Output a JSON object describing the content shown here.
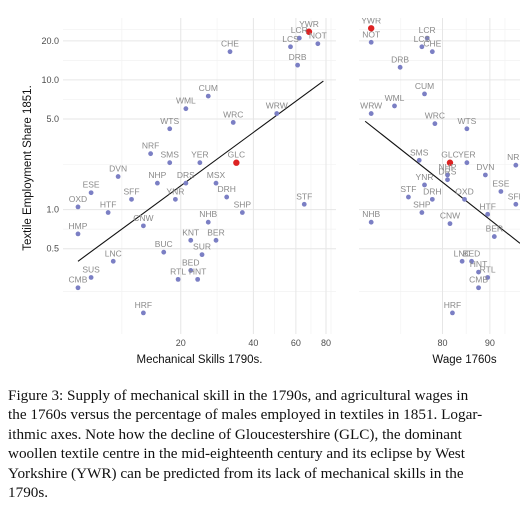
{
  "chart_data": [
    {
      "type": "scatter",
      "ylabel": "Textile Employment Share 1851.",
      "xlabel": "Mechanical Skills 1790s.",
      "x_scale": "log",
      "y_scale": "log",
      "xlim": [
        6.5,
        88
      ],
      "ylim": [
        0.11,
        30
      ],
      "x_ticks": [
        20,
        40,
        60,
        80
      ],
      "y_ticks": [
        0.5,
        1.0,
        5.0,
        10.0,
        20.0
      ],
      "y_tick_labels": [
        "0.5",
        "1.0",
        "5.0",
        "10.0",
        "20.0"
      ],
      "trend_line": [
        [
          7.5,
          0.4
        ],
        [
          78,
          9.8
        ]
      ],
      "highlight_color": "#dd2222",
      "point_color": "#7b7fc4",
      "points": [
        {
          "label": "YWR",
          "x": 68,
          "y": 23.5,
          "highlight": true
        },
        {
          "label": "LCR",
          "x": 62,
          "y": 21
        },
        {
          "label": "LCS",
          "x": 57,
          "y": 18
        },
        {
          "label": "NOT",
          "x": 74,
          "y": 19
        },
        {
          "label": "DRB",
          "x": 61,
          "y": 13
        },
        {
          "label": "CHE",
          "x": 32,
          "y": 16.5
        },
        {
          "label": "CUM",
          "x": 26,
          "y": 7.5
        },
        {
          "label": "WML",
          "x": 21,
          "y": 6
        },
        {
          "label": "WRW",
          "x": 50,
          "y": 5.5
        },
        {
          "label": "WRC",
          "x": 33,
          "y": 4.7
        },
        {
          "label": "WTS",
          "x": 18,
          "y": 4.2
        },
        {
          "label": "NRF",
          "x": 15,
          "y": 2.7
        },
        {
          "label": "SMS",
          "x": 18,
          "y": 2.3
        },
        {
          "label": "YER",
          "x": 24,
          "y": 2.3
        },
        {
          "label": "GLC",
          "x": 34,
          "y": 2.3,
          "highlight": true
        },
        {
          "label": "DVN",
          "x": 11,
          "y": 1.8
        },
        {
          "label": "NHP",
          "x": 16,
          "y": 1.6
        },
        {
          "label": "DRS",
          "x": 21,
          "y": 1.6
        },
        {
          "label": "MSX",
          "x": 28,
          "y": 1.6
        },
        {
          "label": "ESE",
          "x": 8.5,
          "y": 1.35
        },
        {
          "label": "YNR",
          "x": 19,
          "y": 1.2
        },
        {
          "label": "SFF",
          "x": 12.5,
          "y": 1.2
        },
        {
          "label": "DRH",
          "x": 31,
          "y": 1.25
        },
        {
          "label": "STF",
          "x": 65,
          "y": 1.1
        },
        {
          "label": "OXD",
          "x": 7.5,
          "y": 1.05
        },
        {
          "label": "HTF",
          "x": 10,
          "y": 0.95
        },
        {
          "label": "SHP",
          "x": 36,
          "y": 0.95
        },
        {
          "label": "CNW",
          "x": 14,
          "y": 0.75
        },
        {
          "label": "NHB",
          "x": 26,
          "y": 0.8
        },
        {
          "label": "HMP",
          "x": 7.5,
          "y": 0.65
        },
        {
          "label": "KNT",
          "x": 22,
          "y": 0.58
        },
        {
          "label": "BER",
          "x": 28,
          "y": 0.58
        },
        {
          "label": "BUC",
          "x": 17,
          "y": 0.47
        },
        {
          "label": "SUR",
          "x": 24.5,
          "y": 0.45
        },
        {
          "label": "LNC",
          "x": 10.5,
          "y": 0.4
        },
        {
          "label": "BED",
          "x": 22,
          "y": 0.34
        },
        {
          "label": "SUS",
          "x": 8.5,
          "y": 0.3
        },
        {
          "label": "RTL",
          "x": 19.5,
          "y": 0.29
        },
        {
          "label": "HNT",
          "x": 23.5,
          "y": 0.29
        },
        {
          "label": "CMB",
          "x": 7.5,
          "y": 0.25
        },
        {
          "label": "HRF",
          "x": 14,
          "y": 0.16
        }
      ]
    },
    {
      "type": "scatter",
      "ylabel": "",
      "xlabel": "Wage 1760s",
      "x_scale": "log",
      "y_scale": "log",
      "xlim": [
        65,
        97
      ],
      "ylim": [
        0.11,
        30
      ],
      "x_ticks": [
        80,
        90
      ],
      "trend_line": [
        [
          66,
          4.8
        ],
        [
          97,
          0.55
        ]
      ],
      "highlight_color": "#dd2222",
      "point_color": "#7b7fc4",
      "points": [
        {
          "label": "YWR",
          "x": 67,
          "y": 25,
          "highlight": true
        },
        {
          "label": "NOT",
          "x": 67,
          "y": 19.5
        },
        {
          "label": "LCR",
          "x": 77,
          "y": 21
        },
        {
          "label": "LCS",
          "x": 76,
          "y": 18
        },
        {
          "label": "CHE",
          "x": 78,
          "y": 16.5
        },
        {
          "label": "DRB",
          "x": 72,
          "y": 12.5
        },
        {
          "label": "CUM",
          "x": 76.5,
          "y": 7.8
        },
        {
          "label": "WML",
          "x": 71,
          "y": 6.3
        },
        {
          "label": "WRW",
          "x": 67,
          "y": 5.5
        },
        {
          "label": "WRC",
          "x": 78.5,
          "y": 4.6
        },
        {
          "label": "WTS",
          "x": 85,
          "y": 4.2
        },
        {
          "label": "GLC",
          "x": 81.5,
          "y": 2.3,
          "highlight": true
        },
        {
          "label": "SMS",
          "x": 75.5,
          "y": 2.4
        },
        {
          "label": "YER",
          "x": 85,
          "y": 2.3
        },
        {
          "label": "NRF",
          "x": 96,
          "y": 2.2
        },
        {
          "label": "NHP",
          "x": 81,
          "y": 1.85
        },
        {
          "label": "DVN",
          "x": 89,
          "y": 1.85
        },
        {
          "label": "DRS",
          "x": 81,
          "y": 1.7
        },
        {
          "label": "YNR",
          "x": 76.5,
          "y": 1.55
        },
        {
          "label": "ESE",
          "x": 92.5,
          "y": 1.38
        },
        {
          "label": "STF",
          "x": 73.5,
          "y": 1.25
        },
        {
          "label": "DRH",
          "x": 78,
          "y": 1.2
        },
        {
          "label": "OXD",
          "x": 84.5,
          "y": 1.2
        },
        {
          "label": "SFF",
          "x": 96,
          "y": 1.1
        },
        {
          "label": "SHP",
          "x": 76,
          "y": 0.95
        },
        {
          "label": "HTF",
          "x": 89.5,
          "y": 0.92
        },
        {
          "label": "NHB",
          "x": 67,
          "y": 0.8
        },
        {
          "label": "CNW",
          "x": 81.5,
          "y": 0.78
        },
        {
          "label": "BER",
          "x": 91,
          "y": 0.62
        },
        {
          "label": "LNC",
          "x": 84,
          "y": 0.4
        },
        {
          "label": "BED",
          "x": 86,
          "y": 0.4
        },
        {
          "label": "HNT",
          "x": 87.5,
          "y": 0.33
        },
        {
          "label": "RTL",
          "x": 89.5,
          "y": 0.3
        },
        {
          "label": "CMB",
          "x": 87.5,
          "y": 0.25
        },
        {
          "label": "HRF",
          "x": 82,
          "y": 0.16
        }
      ]
    }
  ],
  "caption": {
    "lines": [
      "Figure 3: Supply of mechanical skill in the 1790s, and agricultural wages in",
      "the 1760s versus the percentage of males employed in textiles in 1851. Logar-",
      "ithmic axes. Note how the decline of Gloucestershire (GLC), the dominant",
      "woollen textile centre in the mid-eighteenth century and its eclipse by West",
      "Yorkshire (YWR) can be predicted from its lack of mechanical skills in the",
      "1790s."
    ]
  }
}
